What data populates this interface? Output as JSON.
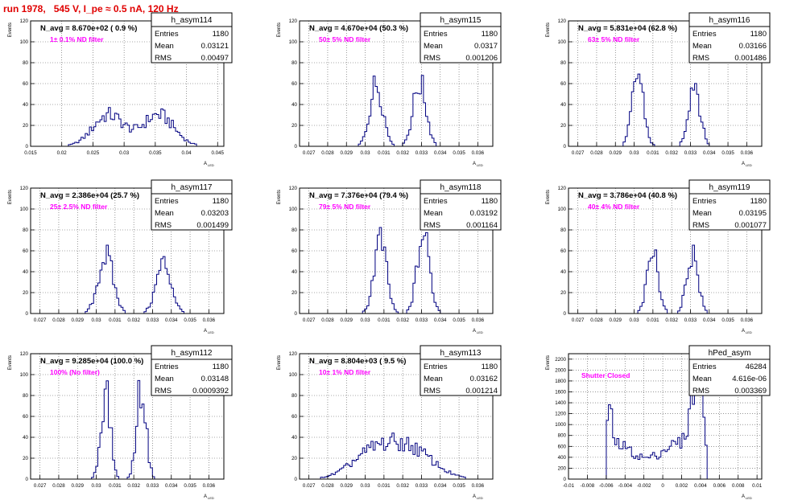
{
  "header": {
    "title": "run 1978,   545 V, I_pe ≈ 0.5 nA, 120 Hz"
  },
  "style": {
    "title_color": "#e00000",
    "hist_color": "#000080",
    "filter_color": "#ff00ff",
    "grid_color": "#555555"
  },
  "stats_labels": {
    "entries": "Entries",
    "mean": "Mean",
    "rms": "RMS"
  },
  "chart_data": [
    {
      "type": "histogram",
      "hist_name": "h_asym114",
      "navg": "N_avg = 8.670e+02 ( 0.9 %)",
      "filter": "1± 0.1% ND filter",
      "entries": "1180",
      "mean": "0.03121",
      "rms": "0.00497",
      "ylabel": "Events",
      "xlabel": "",
      "xlim": [
        0.015,
        0.046
      ],
      "ylim": [
        0,
        120
      ],
      "xticks": [
        0.015,
        0.02,
        0.025,
        0.03,
        0.035,
        0.04,
        0.045
      ],
      "xtick_labels": [
        "0.015",
        "0.02",
        "0.025",
        "0.03",
        "0.035",
        "0.04",
        "0.045"
      ],
      "yticks": [
        0,
        20,
        40,
        60,
        80,
        100,
        120
      ],
      "ytick_labels": [
        "0",
        "20",
        "40",
        "60",
        "80",
        "100",
        "120"
      ],
      "peaks": [
        {
          "center": 0.0275,
          "sigma": 0.0025,
          "height": 30
        },
        {
          "center": 0.0355,
          "sigma": 0.0025,
          "height": 30
        }
      ],
      "grid": true
    },
    {
      "type": "histogram",
      "hist_name": "h_asym115",
      "navg": "N_avg = 4.670e+04 (50.3 %)",
      "filter": "50± 5% ND filter",
      "entries": "1180",
      "mean": "0.0317",
      "rms": "0.001206",
      "ylabel": "Events",
      "xlabel": "",
      "xlim": [
        0.0265,
        0.0368
      ],
      "ylim": [
        0,
        120
      ],
      "xticks": [
        0.027,
        0.028,
        0.029,
        0.03,
        0.031,
        0.032,
        0.033,
        0.034,
        0.035,
        0.036
      ],
      "xtick_labels": [
        "0.027",
        "0.028",
        "0.029",
        "0.03",
        "0.031",
        "0.032",
        "0.033",
        "0.034",
        "0.035",
        "0.036"
      ],
      "yticks": [
        0,
        20,
        40,
        60,
        80,
        100,
        120
      ],
      "ytick_labels": [
        "0",
        "20",
        "40",
        "60",
        "80",
        "100",
        "120"
      ],
      "peaks": [
        {
          "center": 0.0306,
          "sigma": 0.00035,
          "height": 60
        },
        {
          "center": 0.0329,
          "sigma": 0.00035,
          "height": 60
        }
      ],
      "grid": true
    },
    {
      "type": "histogram",
      "hist_name": "h_asym116",
      "navg": "N_avg = 5.831e+04 (62.8 %)",
      "filter": "63± 5% ND filter",
      "entries": "1180",
      "mean": "0.03166",
      "rms": "0.001486",
      "ylabel": "Events",
      "xlabel": "",
      "xlim": [
        0.0265,
        0.0368
      ],
      "ylim": [
        0,
        120
      ],
      "xticks": [
        0.027,
        0.028,
        0.029,
        0.03,
        0.031,
        0.032,
        0.033,
        0.034,
        0.035,
        0.036
      ],
      "xtick_labels": [
        "0.027",
        "0.028",
        "0.029",
        "0.03",
        "0.031",
        "0.032",
        "0.033",
        "0.034",
        "0.035",
        "0.036"
      ],
      "yticks": [
        0,
        20,
        40,
        60,
        80,
        100,
        120
      ],
      "ytick_labels": [
        "0",
        "20",
        "40",
        "60",
        "80",
        "100",
        "120"
      ],
      "peaks": [
        {
          "center": 0.0302,
          "sigma": 0.0003,
          "height": 70
        },
        {
          "center": 0.0332,
          "sigma": 0.0003,
          "height": 63
        }
      ],
      "grid": true
    },
    {
      "type": "histogram",
      "hist_name": "h_asym117",
      "navg": "N_avg = 2.386e+04 (25.7 %)",
      "filter": "25± 2.5% ND filter",
      "entries": "1180",
      "mean": "0.03203",
      "rms": "0.001499",
      "ylabel": "Events",
      "xlabel": "",
      "xlim": [
        0.0265,
        0.0368
      ],
      "ylim": [
        0,
        120
      ],
      "xticks": [
        0.027,
        0.028,
        0.029,
        0.03,
        0.031,
        0.032,
        0.033,
        0.034,
        0.035,
        0.036
      ],
      "xtick_labels": [
        "0.027",
        "0.028",
        "0.029",
        "0.03",
        "0.031",
        "0.032",
        "0.033",
        "0.034",
        "0.035",
        "0.036"
      ],
      "yticks": [
        0,
        20,
        40,
        60,
        80,
        100,
        120
      ],
      "ytick_labels": [
        "0",
        "20",
        "40",
        "60",
        "80",
        "100",
        "120"
      ],
      "peaks": [
        {
          "center": 0.0305,
          "sigma": 0.0004,
          "height": 55
        },
        {
          "center": 0.0336,
          "sigma": 0.0004,
          "height": 48
        }
      ],
      "grid": true
    },
    {
      "type": "histogram",
      "hist_name": "h_asym118",
      "navg": "N_avg = 7.376e+04 (79.4 %)",
      "filter": "79± 5% ND filter",
      "entries": "1180",
      "mean": "0.03192",
      "rms": "0.001164",
      "ylabel": "Events",
      "xlabel": "",
      "xlim": [
        0.0265,
        0.0368
      ],
      "ylim": [
        0,
        120
      ],
      "xticks": [
        0.027,
        0.028,
        0.029,
        0.03,
        0.031,
        0.032,
        0.033,
        0.034,
        0.035,
        0.036
      ],
      "xtick_labels": [
        "0.027",
        "0.028",
        "0.029",
        "0.03",
        "0.031",
        "0.032",
        "0.033",
        "0.034",
        "0.035",
        "0.036"
      ],
      "yticks": [
        0,
        20,
        40,
        60,
        80,
        100,
        120
      ],
      "ytick_labels": [
        "0",
        "20",
        "40",
        "60",
        "80",
        "100",
        "120"
      ],
      "peaks": [
        {
          "center": 0.0308,
          "sigma": 0.00033,
          "height": 70
        },
        {
          "center": 0.0331,
          "sigma": 0.00033,
          "height": 75
        }
      ],
      "grid": true
    },
    {
      "type": "histogram",
      "hist_name": "h_asym119",
      "navg": "N_avg = 3.786e+04 (40.8 %)",
      "filter": "40± 4% ND filter",
      "entries": "1180",
      "mean": "0.03195",
      "rms": "0.001077",
      "ylabel": "Events",
      "xlabel": "",
      "xlim": [
        0.0265,
        0.0368
      ],
      "ylim": [
        0,
        120
      ],
      "xticks": [
        0.027,
        0.028,
        0.029,
        0.03,
        0.031,
        0.032,
        0.033,
        0.034,
        0.035,
        0.036
      ],
      "xtick_labels": [
        "0.027",
        "0.028",
        "0.029",
        "0.03",
        "0.031",
        "0.032",
        "0.033",
        "0.034",
        "0.035",
        "0.036"
      ],
      "yticks": [
        0,
        20,
        40,
        60,
        80,
        100,
        120
      ],
      "ytick_labels": [
        "0",
        "20",
        "40",
        "60",
        "80",
        "100",
        "120"
      ],
      "peaks": [
        {
          "center": 0.031,
          "sigma": 0.0003,
          "height": 58
        },
        {
          "center": 0.0331,
          "sigma": 0.0003,
          "height": 58
        }
      ],
      "grid": true
    },
    {
      "type": "histogram",
      "hist_name": "h_asym112",
      "navg": "N_avg = 9.285e+04 (100.0 %)",
      "filter": "100% (No filter)",
      "entries": "1180",
      "mean": "0.03148",
      "rms": "0.0009392",
      "ylabel": "Events",
      "xlabel": "",
      "xlim": [
        0.0265,
        0.0368
      ],
      "ylim": [
        0,
        120
      ],
      "xticks": [
        0.027,
        0.028,
        0.029,
        0.03,
        0.031,
        0.032,
        0.033,
        0.034,
        0.035,
        0.036
      ],
      "xtick_labels": [
        "0.027",
        "0.028",
        "0.029",
        "0.03",
        "0.031",
        "0.032",
        "0.033",
        "0.034",
        "0.035",
        "0.036"
      ],
      "yticks": [
        0,
        20,
        40,
        60,
        80,
        100,
        120
      ],
      "ytick_labels": [
        "0",
        "20",
        "40",
        "60",
        "80",
        "100",
        "120"
      ],
      "peaks": [
        {
          "center": 0.0305,
          "sigma": 0.00025,
          "height": 85
        },
        {
          "center": 0.0324,
          "sigma": 0.00025,
          "height": 88
        }
      ],
      "grid": true
    },
    {
      "type": "histogram",
      "hist_name": "h_asym113",
      "navg": "N_avg = 8.804e+03 ( 9.5 %)",
      "filter": "10± 1% ND filter",
      "entries": "1180",
      "mean": "0.03162",
      "rms": "0.001214",
      "ylabel": "Events",
      "xlabel": "",
      "xlim": [
        0.0265,
        0.0368
      ],
      "ylim": [
        0,
        120
      ],
      "xticks": [
        0.027,
        0.028,
        0.029,
        0.03,
        0.031,
        0.032,
        0.033,
        0.034,
        0.035,
        0.036
      ],
      "xtick_labels": [
        "0.027",
        "0.028",
        "0.029",
        "0.03",
        "0.031",
        "0.032",
        "0.033",
        "0.034",
        "0.035",
        "0.036"
      ],
      "yticks": [
        0,
        20,
        40,
        60,
        80,
        100,
        120
      ],
      "ytick_labels": [
        "0",
        "20",
        "40",
        "60",
        "80",
        "100",
        "120"
      ],
      "peaks": [
        {
          "center": 0.0305,
          "sigma": 0.0012,
          "height": 25
        },
        {
          "center": 0.0325,
          "sigma": 0.0012,
          "height": 25
        }
      ],
      "grid": true
    },
    {
      "type": "histogram",
      "hist_name": "hPed_asym",
      "navg": "",
      "filter": "Shutter Closed",
      "entries": "46284",
      "mean": "4.616e-06",
      "rms": "0.003369",
      "ylabel": "Events",
      "xlabel": "",
      "xlim": [
        -0.01,
        0.0105
      ],
      "ylim": [
        0,
        2300
      ],
      "xticks": [
        -0.01,
        -0.008,
        -0.006,
        -0.004,
        -0.002,
        0,
        0.002,
        0.004,
        0.006,
        0.008,
        0.01
      ],
      "xtick_labels": [
        "-0.01",
        "-0.008",
        "-0.006",
        "-0.004",
        "-0.002",
        "0",
        "0.002",
        "0.004",
        "0.006",
        "0.008",
        "0.01"
      ],
      "yticks": [
        0,
        200,
        400,
        600,
        800,
        1000,
        1200,
        1400,
        1600,
        1800,
        2000,
        2200
      ],
      "ytick_labels": [
        "0",
        "200",
        "400",
        "600",
        "800",
        "1000",
        "1200",
        "1400",
        "1600",
        "1800",
        "2000",
        "2200"
      ],
      "shape": "pedestal",
      "grid": true
    }
  ]
}
